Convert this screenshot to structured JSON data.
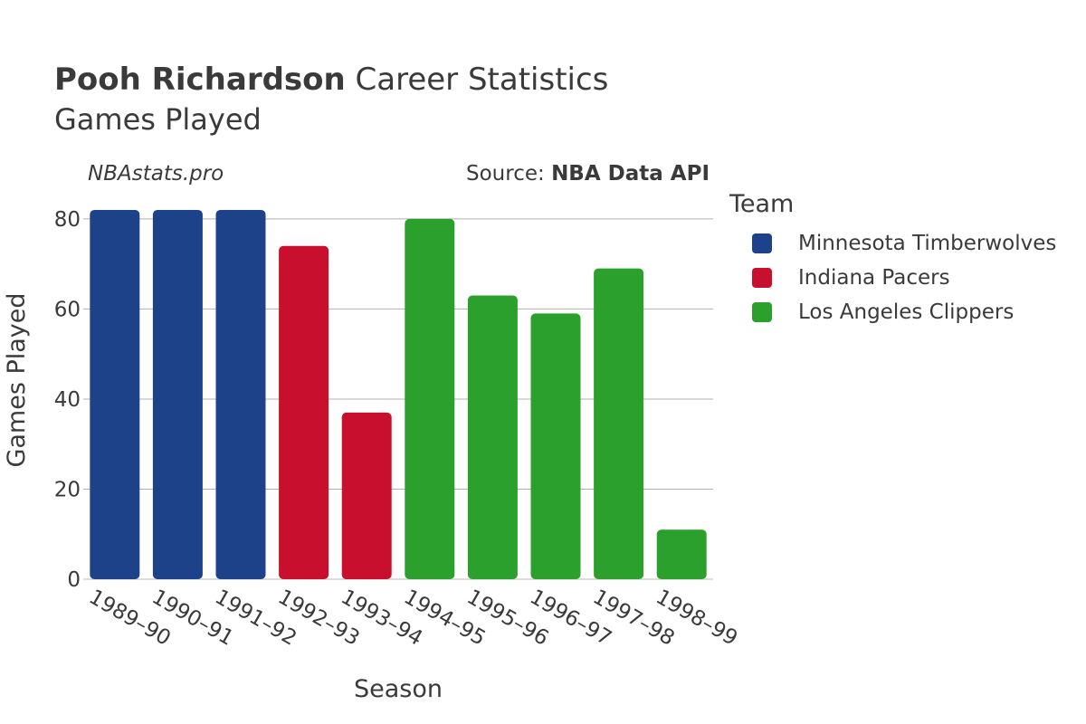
{
  "header": {
    "title_bold": "Pooh Richardson",
    "title_rest": " Career Statistics",
    "subtitle": "Games Played"
  },
  "watermark": "NBAstats.pro",
  "source": {
    "prefix": "Source: ",
    "name": "NBA Data API"
  },
  "legend": {
    "title": "Team",
    "items": [
      {
        "label": "Minnesota Timberwolves",
        "color": "#1d428a"
      },
      {
        "label": "Indiana Pacers",
        "color": "#c8102e"
      },
      {
        "label": "Los Angeles Clippers",
        "color": "#2ca02c"
      }
    ]
  },
  "chart_data": {
    "type": "bar",
    "title": "Pooh Richardson Career Statistics",
    "subtitle": "Games Played",
    "xlabel": "Season",
    "ylabel": "Games Played",
    "ylim": [
      0,
      84
    ],
    "yticks": [
      0,
      20,
      40,
      60,
      80
    ],
    "grid": true,
    "legend_position": "right",
    "categories": [
      "1989–90",
      "1990–91",
      "1991–92",
      "1992–93",
      "1993–94",
      "1994–95",
      "1995–96",
      "1996–97",
      "1997–98",
      "1998–99"
    ],
    "values": [
      82,
      82,
      82,
      74,
      37,
      80,
      63,
      59,
      69,
      11
    ],
    "teams": [
      "Minnesota Timberwolves",
      "Minnesota Timberwolves",
      "Minnesota Timberwolves",
      "Indiana Pacers",
      "Indiana Pacers",
      "Los Angeles Clippers",
      "Los Angeles Clippers",
      "Los Angeles Clippers",
      "Los Angeles Clippers",
      "Los Angeles Clippers"
    ]
  }
}
